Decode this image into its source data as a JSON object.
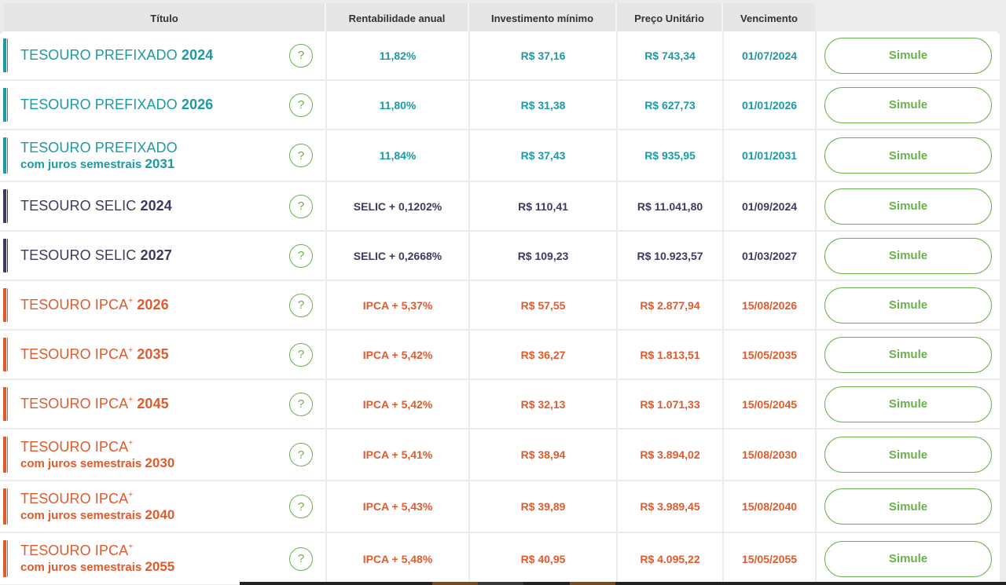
{
  "header": {
    "titulo": "Título",
    "rentabilidade": "Rentabilidade anual",
    "investimento": "Investimento mínimo",
    "preco": "Preço Unitário",
    "vencimento": "Vencimento"
  },
  "colors": {
    "prefixado": "#1c9aa3",
    "selic": "#3e3a5e",
    "ipca": "#e05a2b",
    "accent_green": "#6ab04c"
  },
  "help_icon": "question-circle-icon",
  "rows": [
    {
      "name": "TESOURO PREFIXADO",
      "year": "2024",
      "sup": "",
      "sub": "",
      "rent": "11,82%",
      "inv": "R$ 37,16",
      "price": "R$ 743,34",
      "venc": "01/07/2024",
      "btn": "Simule",
      "kind": "prefixado"
    },
    {
      "name": "TESOURO PREFIXADO",
      "year": "2026",
      "sup": "",
      "sub": "",
      "rent": "11,80%",
      "inv": "R$ 31,38",
      "price": "R$ 627,73",
      "venc": "01/01/2026",
      "btn": "Simule",
      "kind": "prefixado"
    },
    {
      "name": "TESOURO PREFIXADO",
      "year": "",
      "sup": "",
      "sub": "com juros semestrais",
      "subyear": "2031",
      "rent": "11,84%",
      "inv": "R$ 37,43",
      "price": "R$ 935,95",
      "venc": "01/01/2031",
      "btn": "Simule",
      "kind": "prefixado"
    },
    {
      "name": "TESOURO SELIC",
      "year": "2024",
      "sup": "",
      "sub": "",
      "rent": "SELIC + 0,1202%",
      "inv": "R$ 110,41",
      "price": "R$ 11.041,80",
      "venc": "01/09/2024",
      "btn": "Simule",
      "kind": "selic"
    },
    {
      "name": "TESOURO SELIC",
      "year": "2027",
      "sup": "",
      "sub": "",
      "rent": "SELIC + 0,2668%",
      "inv": "R$ 109,23",
      "price": "R$ 10.923,57",
      "venc": "01/03/2027",
      "btn": "Simule",
      "kind": "selic"
    },
    {
      "name": "TESOURO IPCA",
      "year": "2026",
      "sup": "+",
      "sub": "",
      "rent": "IPCA + 5,37%",
      "inv": "R$ 57,55",
      "price": "R$ 2.877,94",
      "venc": "15/08/2026",
      "btn": "Simule",
      "kind": "ipca"
    },
    {
      "name": "TESOURO IPCA",
      "year": "2035",
      "sup": "+",
      "sub": "",
      "rent": "IPCA + 5,42%",
      "inv": "R$ 36,27",
      "price": "R$ 1.813,51",
      "venc": "15/05/2035",
      "btn": "Simule",
      "kind": "ipca"
    },
    {
      "name": "TESOURO IPCA",
      "year": "2045",
      "sup": "+",
      "sub": "",
      "rent": "IPCA + 5,42%",
      "inv": "R$ 32,13",
      "price": "R$ 1.071,33",
      "venc": "15/05/2045",
      "btn": "Simule",
      "kind": "ipca"
    },
    {
      "name": "TESOURO IPCA",
      "year": "",
      "sup": "+",
      "sub": "com juros semestrais",
      "subyear": "2030",
      "rent": "IPCA + 5,41%",
      "inv": "R$ 38,94",
      "price": "R$ 3.894,02",
      "venc": "15/08/2030",
      "btn": "Simule",
      "kind": "ipca"
    },
    {
      "name": "TESOURO IPCA",
      "year": "",
      "sup": "+",
      "sub": "com juros semestrais",
      "subyear": "2040",
      "rent": "IPCA + 5,43%",
      "inv": "R$ 39,89",
      "price": "R$ 3.989,45",
      "venc": "15/08/2040",
      "btn": "Simule",
      "kind": "ipca"
    },
    {
      "name": "TESOURO IPCA",
      "year": "",
      "sup": "+",
      "sub": "com juros semestrais",
      "subyear": "2055",
      "rent": "IPCA + 5,48%",
      "inv": "R$ 40,95",
      "price": "R$ 4.095,22",
      "venc": "15/05/2055",
      "btn": "Simule",
      "kind": "ipca"
    }
  ]
}
